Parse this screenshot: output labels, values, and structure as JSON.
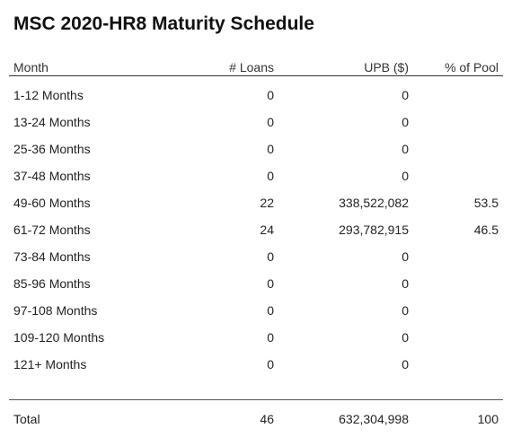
{
  "title": "MSC 2020-HR8 Maturity Schedule",
  "headers": {
    "month": "Month",
    "loans": "# Loans",
    "upb": "UPB ($)",
    "pct": "% of Pool"
  },
  "rows": [
    {
      "month": "1-12 Months",
      "loans": "0",
      "upb": "0",
      "pct": ""
    },
    {
      "month": "13-24 Months",
      "loans": "0",
      "upb": "0",
      "pct": ""
    },
    {
      "month": "25-36 Months",
      "loans": "0",
      "upb": "0",
      "pct": ""
    },
    {
      "month": "37-48 Months",
      "loans": "0",
      "upb": "0",
      "pct": ""
    },
    {
      "month": "49-60 Months",
      "loans": "22",
      "upb": "338,522,082",
      "pct": "53.5"
    },
    {
      "month": "61-72 Months",
      "loans": "24",
      "upb": "293,782,915",
      "pct": "46.5"
    },
    {
      "month": "73-84 Months",
      "loans": "0",
      "upb": "0",
      "pct": ""
    },
    {
      "month": "85-96 Months",
      "loans": "0",
      "upb": "0",
      "pct": ""
    },
    {
      "month": "97-108 Months",
      "loans": "0",
      "upb": "0",
      "pct": ""
    },
    {
      "month": "109-120 Months",
      "loans": "0",
      "upb": "0",
      "pct": ""
    },
    {
      "month": "121+ Months",
      "loans": "0",
      "upb": "0",
      "pct": ""
    }
  ],
  "total": {
    "month": "Total",
    "loans": "46",
    "upb": "632,304,998",
    "pct": "100"
  }
}
